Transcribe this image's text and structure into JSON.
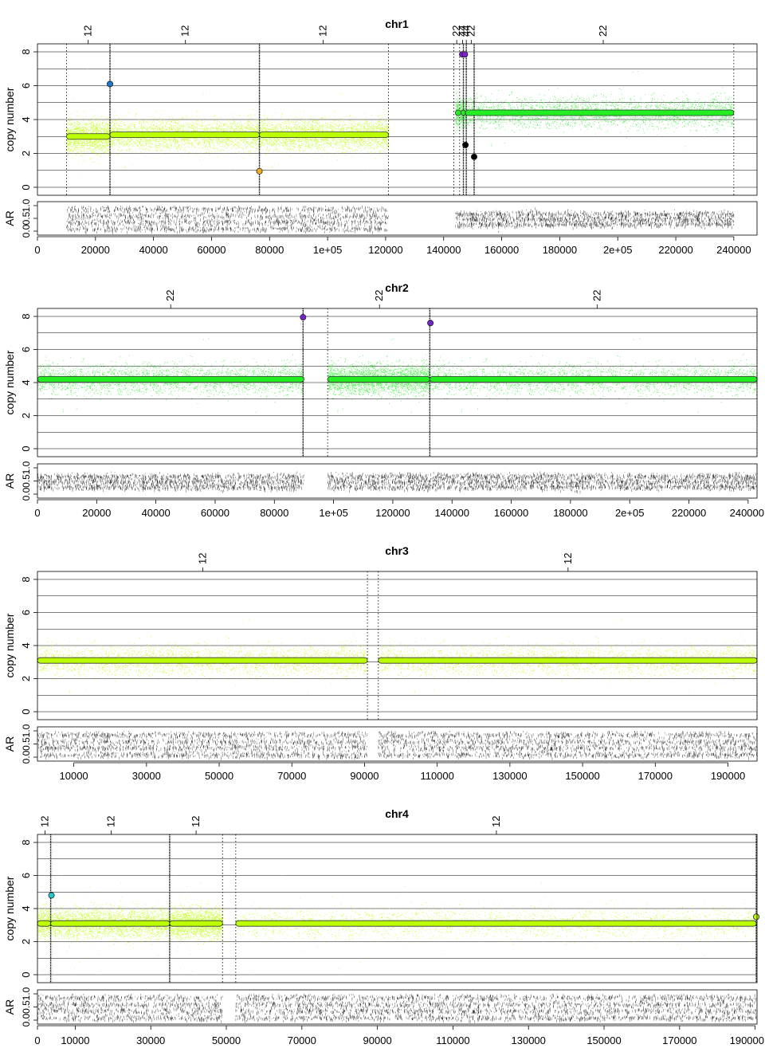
{
  "chart_data": [
    {
      "type": "scatter",
      "title": "chr1",
      "ylabel": "copy number",
      "ar_label": "AR",
      "xlim": [
        0,
        248000
      ],
      "ylim": [
        0,
        8
      ],
      "x_ticks": [
        0,
        20000,
        40000,
        60000,
        80000,
        100000,
        120000,
        140000,
        160000,
        180000,
        200000,
        220000,
        240000
      ],
      "x_tick_labels": [
        "0",
        "20000",
        "40000",
        "60000",
        "80000",
        "1e+05",
        "120000",
        "140000",
        "160000",
        "180000",
        "2e+05",
        "220000",
        "240000"
      ],
      "y_tick_labels": [
        "0",
        "2",
        "4",
        "6",
        "8"
      ],
      "ar_tick_labels": [
        "0.0",
        "0.5",
        "1.0"
      ],
      "top_labels": [
        {
          "x": 17500,
          "text": "12"
        },
        {
          "x": 51000,
          "text": "12"
        },
        {
          "x": 98500,
          "text": "12"
        },
        {
          "x": 144500,
          "text": "22"
        },
        {
          "x": 146500,
          "text": "44"
        },
        {
          "x": 147800,
          "text": "44"
        },
        {
          "x": 149500,
          "text": "22"
        },
        {
          "x": 195000,
          "text": "22"
        }
      ],
      "gaps": [
        [
          121000,
          145000
        ]
      ],
      "boundaries": [
        {
          "x": 10000,
          "style": "dotted"
        },
        {
          "x": 25000,
          "style": "dense"
        },
        {
          "x": 76500,
          "style": "dense"
        },
        {
          "x": 121000,
          "style": "dotted"
        },
        {
          "x": 143500,
          "style": "dotted"
        },
        {
          "x": 145500,
          "style": "dotted"
        },
        {
          "x": 146800,
          "style": "dense"
        },
        {
          "x": 147800,
          "style": "dense"
        },
        {
          "x": 150500,
          "style": "dense"
        },
        {
          "x": 240000,
          "style": "dotted"
        }
      ],
      "segments": [
        {
          "x0": 10000,
          "x1": 25000,
          "cn": 3.0,
          "color": "#bbff00"
        },
        {
          "x0": 25000,
          "x1": 76500,
          "cn": 3.1,
          "color": "#bbff00"
        },
        {
          "x0": 76500,
          "x1": 121000,
          "cn": 3.1,
          "color": "#bbff00"
        },
        {
          "x0": 144000,
          "x1": 146000,
          "cn": 4.4,
          "color": "#22ee22"
        },
        {
          "x0": 146000,
          "x1": 147500,
          "cn": 4.4,
          "color": "#22ee22"
        },
        {
          "x0": 147500,
          "x1": 240000,
          "cn": 4.4,
          "color": "#22ee22"
        }
      ],
      "points": [
        {
          "x": 25000,
          "cn": 6.1,
          "color": "#1f77d0"
        },
        {
          "x": 76500,
          "cn": 0.95,
          "color": "#f0b020"
        },
        {
          "x": 146400,
          "cn": 7.85,
          "color": "#7722cc"
        },
        {
          "x": 147300,
          "cn": 7.85,
          "color": "#7722cc"
        },
        {
          "x": 147500,
          "cn": 2.5,
          "color": "#000000"
        },
        {
          "x": 150500,
          "cn": 1.8,
          "color": "#000000"
        }
      ],
      "ar_bands": [
        [
          0.12,
          0.38,
          0.62,
          0.88
        ],
        [
          0.3,
          0.5,
          0.7
        ]
      ]
    },
    {
      "type": "scatter",
      "title": "chr2",
      "ylabel": "copy number",
      "ar_label": "AR",
      "xlim": [
        0,
        243000
      ],
      "ylim": [
        0,
        8
      ],
      "x_ticks": [
        0,
        20000,
        40000,
        60000,
        80000,
        100000,
        120000,
        140000,
        160000,
        180000,
        200000,
        220000,
        240000
      ],
      "x_tick_labels": [
        "0",
        "20000",
        "40000",
        "60000",
        "80000",
        "1e+05",
        "120000",
        "140000",
        "160000",
        "180000",
        "2e+05",
        "220000",
        "240000"
      ],
      "y_tick_labels": [
        "0",
        "2",
        "4",
        "6",
        "8"
      ],
      "ar_tick_labels": [
        "0.0",
        "0.5",
        "1.0"
      ],
      "top_labels": [
        {
          "x": 45000,
          "text": "22"
        },
        {
          "x": 115500,
          "text": "22"
        },
        {
          "x": 189000,
          "text": "22"
        }
      ],
      "gaps": [
        [
          90000,
          98000
        ]
      ],
      "boundaries": [
        {
          "x": 89700,
          "style": "dense"
        },
        {
          "x": 98000,
          "style": "dotted"
        },
        {
          "x": 132500,
          "style": "dense"
        },
        {
          "x": 243000,
          "style": "dotted"
        }
      ],
      "segments": [
        {
          "x0": 0,
          "x1": 90000,
          "cn": 4.2,
          "color": "#22ee22"
        },
        {
          "x0": 98000,
          "x1": 132500,
          "cn": 4.2,
          "color": "#22ee22"
        },
        {
          "x0": 132500,
          "x1": 243000,
          "cn": 4.2,
          "color": "#22ee22"
        }
      ],
      "points": [
        {
          "x": 89700,
          "cn": 7.95,
          "color": "#7722cc"
        },
        {
          "x": 132700,
          "cn": 7.6,
          "color": "#7722cc"
        }
      ],
      "ar_bands": [
        [
          0.3,
          0.5,
          0.7
        ]
      ]
    },
    {
      "type": "scatter",
      "title": "chr3",
      "ylabel": "copy number",
      "ar_label": "AR",
      "xlim": [
        0,
        198000
      ],
      "ylim": [
        0,
        8
      ],
      "x_ticks": [
        10000,
        30000,
        50000,
        70000,
        90000,
        110000,
        130000,
        150000,
        170000,
        190000
      ],
      "x_tick_labels": [
        "10000",
        "30000",
        "50000",
        "70000",
        "90000",
        "110000",
        "130000",
        "150000",
        "170000",
        "190000"
      ],
      "y_tick_labels": [
        "0",
        "2",
        "4",
        "6",
        "8"
      ],
      "ar_tick_labels": [
        "0.0",
        "0.5",
        "1.0"
      ],
      "top_labels": [
        {
          "x": 45500,
          "text": "12"
        },
        {
          "x": 146000,
          "text": "12"
        }
      ],
      "gaps": [
        [
          90800,
          93800
        ]
      ],
      "boundaries": [
        {
          "x": 90800,
          "style": "dotted"
        },
        {
          "x": 93800,
          "style": "dotted"
        },
        {
          "x": 198000,
          "style": "dotted"
        }
      ],
      "segments": [
        {
          "x0": 0,
          "x1": 90800,
          "cn": 3.1,
          "color": "#bbff00"
        },
        {
          "x0": 93800,
          "x1": 198000,
          "cn": 3.1,
          "color": "#bbff00"
        }
      ],
      "points": [],
      "ar_bands": [
        [
          0.12,
          0.38,
          0.62,
          0.88
        ],
        [
          0.3,
          0.5,
          0.7
        ]
      ]
    },
    {
      "type": "scatter",
      "title": "chr4",
      "ylabel": "copy number",
      "ar_label": "AR",
      "xlim": [
        0,
        190500
      ],
      "ylim": [
        0,
        8
      ],
      "x_ticks": [
        0,
        10000,
        30000,
        50000,
        70000,
        90000,
        110000,
        130000,
        150000,
        170000,
        190000
      ],
      "x_tick_labels": [
        "0",
        "10000",
        "30000",
        "50000",
        "70000",
        "90000",
        "110000",
        "130000",
        "150000",
        "170000",
        "190000"
      ],
      "y_tick_labels": [
        "0",
        "2",
        "4",
        "6",
        "8"
      ],
      "ar_tick_labels": [
        "0.0",
        "0.5",
        "1.0"
      ],
      "top_labels": [
        {
          "x": 2000,
          "text": "12"
        },
        {
          "x": 19500,
          "text": "12"
        },
        {
          "x": 42000,
          "text": "12"
        },
        {
          "x": 121500,
          "text": "12"
        }
      ],
      "gaps": [
        [
          49000,
          52500
        ]
      ],
      "boundaries": [
        {
          "x": 3500,
          "style": "dense"
        },
        {
          "x": 35000,
          "style": "dense"
        },
        {
          "x": 49000,
          "style": "dotted"
        },
        {
          "x": 52500,
          "style": "dotted"
        },
        {
          "x": 190300,
          "style": "dense"
        }
      ],
      "segments": [
        {
          "x0": 0,
          "x1": 3500,
          "cn": 3.1,
          "color": "#bbff00"
        },
        {
          "x0": 3500,
          "x1": 35000,
          "cn": 3.1,
          "color": "#bbff00"
        },
        {
          "x0": 35000,
          "x1": 49000,
          "cn": 3.1,
          "color": "#bbff00"
        },
        {
          "x0": 52500,
          "x1": 190300,
          "cn": 3.1,
          "color": "#bbff00"
        }
      ],
      "points": [
        {
          "x": 3700,
          "cn": 4.8,
          "color": "#22cccc"
        },
        {
          "x": 190300,
          "cn": 3.5,
          "color": "#bbff00"
        }
      ],
      "ar_bands": [
        [
          0.12,
          0.38,
          0.62,
          0.88
        ],
        [
          0.3,
          0.5,
          0.7
        ]
      ]
    }
  ]
}
